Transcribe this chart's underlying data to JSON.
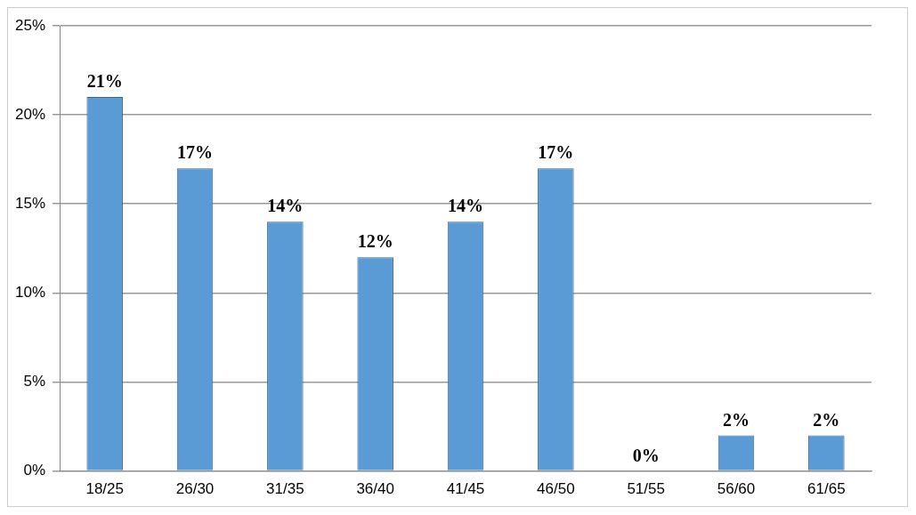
{
  "chart_data": {
    "type": "bar",
    "categories": [
      "18/25",
      "26/30",
      "31/35",
      "36/40",
      "41/45",
      "46/50",
      "51/55",
      "56/60",
      "61/65"
    ],
    "values": [
      21,
      17,
      14,
      12,
      14,
      17,
      0,
      2,
      2
    ],
    "value_labels": [
      "21%",
      "17%",
      "14%",
      "12%",
      "14%",
      "17%",
      "0%",
      "2%",
      "2%"
    ],
    "color": "#5b9bd5",
    "ylim": [
      0,
      25
    ],
    "yticks": [
      {
        "value": 0,
        "label": "0%"
      },
      {
        "value": 5,
        "label": "5%"
      },
      {
        "value": 10,
        "label": "10%"
      },
      {
        "value": 15,
        "label": "15%"
      },
      {
        "value": 20,
        "label": "20%"
      },
      {
        "value": 25,
        "label": "25%"
      }
    ],
    "grid": "y",
    "legend": false
  }
}
